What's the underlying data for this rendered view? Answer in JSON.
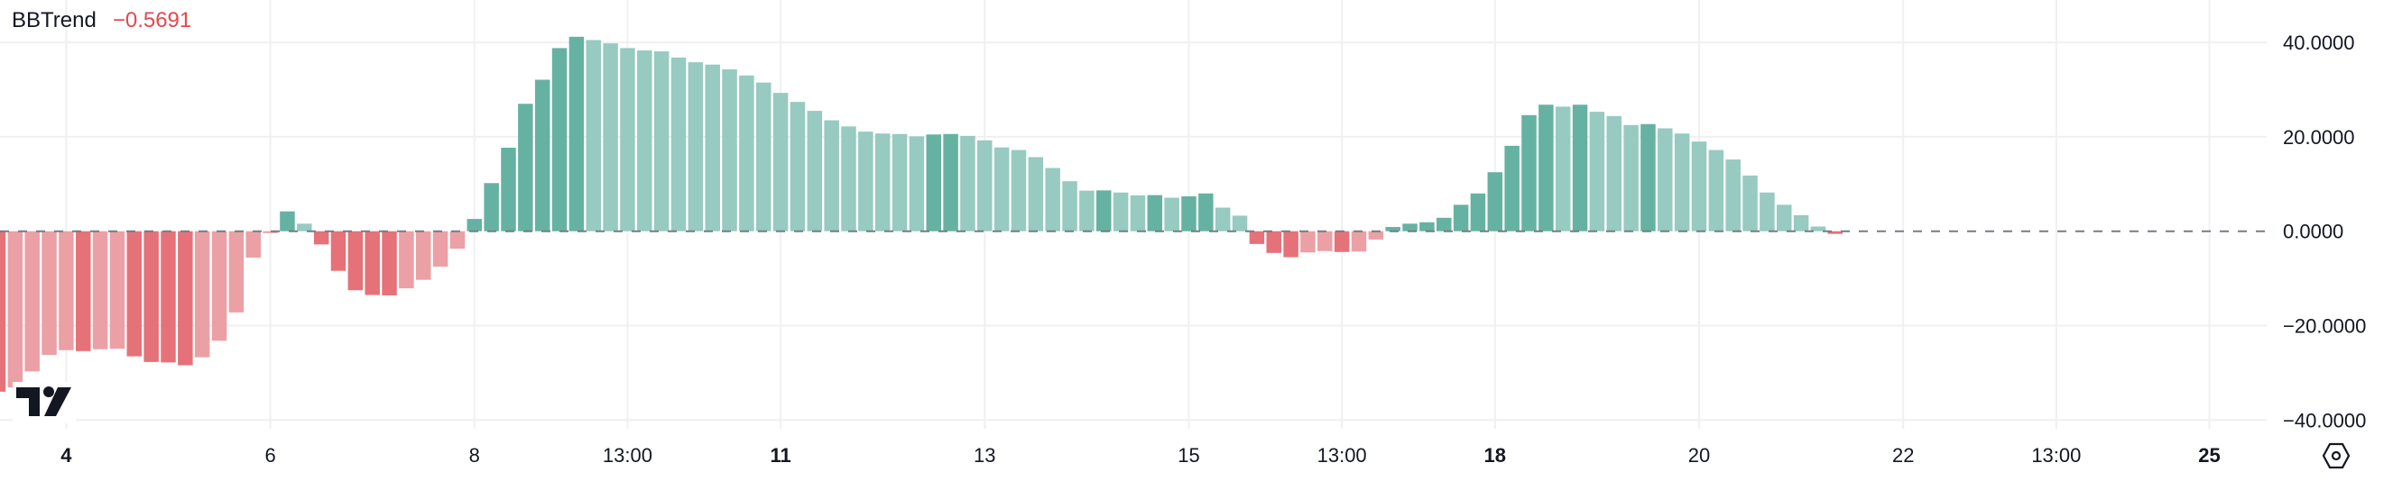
{
  "legend": {
    "name": "BBTrend",
    "value": "−0.5691"
  },
  "colors": {
    "rising_positive": "#66b2a2",
    "falling_positive": "#97cac0",
    "falling_negative": "#e57279",
    "rising_negative": "#eba0a5",
    "zero_line": "#787b86",
    "grid": "#f0f0f0",
    "text": "#131722"
  },
  "icons": {
    "logo": "tradingview-logo",
    "settings": "settings-hexagon-icon"
  },
  "chart_data": {
    "type": "bar",
    "title": "BBTrend",
    "ylim": [
      -40,
      40
    ],
    "yticks": [
      "40.0000",
      "20.0000",
      "0.0000",
      "−20.0000",
      "−40.0000"
    ],
    "ytick_values": [
      40,
      20,
      0,
      -20,
      -40
    ],
    "xticks": [
      {
        "label": "4",
        "bold": true
      },
      {
        "label": "6",
        "bold": false
      },
      {
        "label": "8",
        "bold": false
      },
      {
        "label": "13:00",
        "bold": false
      },
      {
        "label": "11",
        "bold": true
      },
      {
        "label": "13",
        "bold": false
      },
      {
        "label": "15",
        "bold": false
      },
      {
        "label": "13:00",
        "bold": false
      },
      {
        "label": "18",
        "bold": true
      },
      {
        "label": "20",
        "bold": false
      },
      {
        "label": "22",
        "bold": false
      },
      {
        "label": "13:00",
        "bold": false
      },
      {
        "label": "25",
        "bold": true
      }
    ],
    "grid": true,
    "zero_line": "dashed",
    "values": [
      -34.0,
      -33.1,
      -29.7,
      -26.2,
      -25.2,
      -25.4,
      -25.0,
      -24.9,
      -26.5,
      -27.7,
      -27.8,
      -28.4,
      -26.7,
      -23.2,
      -17.2,
      -5.6,
      -0.4,
      4.2,
      1.6,
      -2.8,
      -8.4,
      -12.5,
      -13.5,
      -13.6,
      -12.1,
      -10.3,
      -7.5,
      -3.7,
      2.6,
      10.2,
      17.7,
      27.0,
      32.1,
      38.8,
      41.2,
      40.5,
      39.8,
      38.8,
      38.3,
      38.1,
      36.8,
      35.8,
      35.3,
      34.3,
      33.0,
      31.5,
      29.3,
      27.4,
      25.5,
      23.5,
      22.2,
      21.1,
      20.7,
      20.6,
      20.1,
      20.5,
      20.6,
      20.2,
      19.25,
      17.75,
      17.2,
      15.7,
      13.4,
      10.6,
      8.6,
      8.65,
      8.2,
      7.6,
      7.65,
      7.1,
      7.4,
      8.0,
      5.0,
      3.3,
      -2.7,
      -4.6,
      -5.5,
      -4.5,
      -4.2,
      -4.4,
      -4.3,
      -1.75,
      0.9,
      1.6,
      1.9,
      2.85,
      5.6,
      8.0,
      12.5,
      18.1,
      24.6,
      26.8,
      26.4,
      26.8,
      25.3,
      24.4,
      22.5,
      22.7,
      21.8,
      20.7,
      19.0,
      17.2,
      15.2,
      11.8,
      8.2,
      5.6,
      3.4,
      1.0,
      -0.5691
    ]
  }
}
